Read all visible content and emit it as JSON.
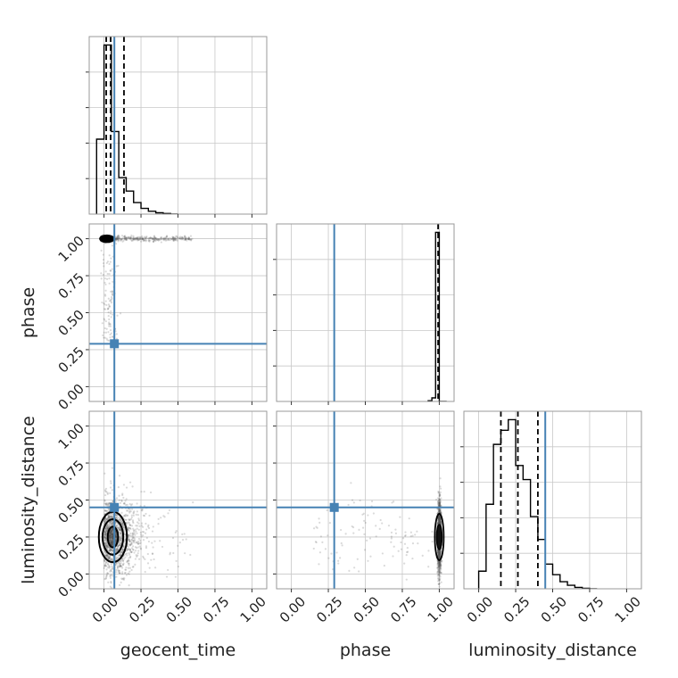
{
  "chart_data": {
    "type": "corner",
    "parameters": [
      "geocent_time",
      "phase",
      "luminosity_distance"
    ],
    "truths": [
      0.07,
      0.29,
      0.45
    ],
    "axis_range": [
      -0.1,
      1.1
    ],
    "tick_values": [
      0.0,
      0.25,
      0.5,
      0.75,
      1.0
    ],
    "tick_labels": [
      "0.00",
      "0.25",
      "0.50",
      "0.75",
      "1.00"
    ],
    "grid": true,
    "colors": {
      "truth": "#4682b4",
      "hist": "#000000",
      "frame": "#999999",
      "grid": "#c8c8c8",
      "scatter": "#555555"
    },
    "marginals": [
      {
        "parameter": "geocent_time",
        "bin_edges": [
          -0.05,
          0.0,
          0.05,
          0.1,
          0.15,
          0.2,
          0.25,
          0.3,
          0.35,
          0.4,
          0.45,
          0.5
        ],
        "densities": [
          0.39,
          0.88,
          0.43,
          0.19,
          0.12,
          0.06,
          0.03,
          0.015,
          0.007,
          0.003,
          0.0
        ],
        "quantiles": [
          0.015,
          0.045,
          0.135
        ]
      },
      {
        "parameter": "phase",
        "bin_edges": [
          0.925,
          0.95,
          0.975,
          1.0,
          1.05
        ],
        "densities": [
          0.004,
          0.02,
          0.95,
          0.0
        ],
        "quantiles": [
          0.992
        ]
      },
      {
        "parameter": "luminosity_distance",
        "bin_edges": [
          0.0,
          0.05,
          0.1,
          0.15,
          0.2,
          0.25,
          0.3,
          0.35,
          0.4,
          0.45,
          0.5,
          0.55,
          0.6,
          0.65,
          0.7,
          0.75,
          0.8
        ],
        "densities": [
          0.1,
          0.48,
          0.82,
          0.9,
          0.96,
          0.7,
          0.62,
          0.41,
          0.28,
          0.14,
          0.08,
          0.04,
          0.02,
          0.008,
          0.003,
          0.0
        ],
        "quantiles": [
          0.15,
          0.265,
          0.4
        ]
      }
    ],
    "joint": [
      {
        "x": "geocent_time",
        "y": "phase",
        "density_core": {
          "x": 0.02,
          "y": 1.0
        },
        "spread": "tail along x from 0.0 to about 0.6 at phase near 1.0; sparse points down to phase 0.3"
      },
      {
        "x": "geocent_time",
        "y": "luminosity_distance",
        "density_core": {
          "x": 0.04,
          "y": 0.25
        },
        "contours": 3,
        "spread": "points from -0.05 to 0.7 in x and 0.0 to 0.7 in y"
      },
      {
        "x": "phase",
        "y": "luminosity_distance",
        "density_core": {
          "x": 1.0,
          "y": 0.25
        },
        "spread": "narrow column at phase near 1.0, y 0.05 to 0.7; sparse points toward lower phase"
      }
    ]
  }
}
